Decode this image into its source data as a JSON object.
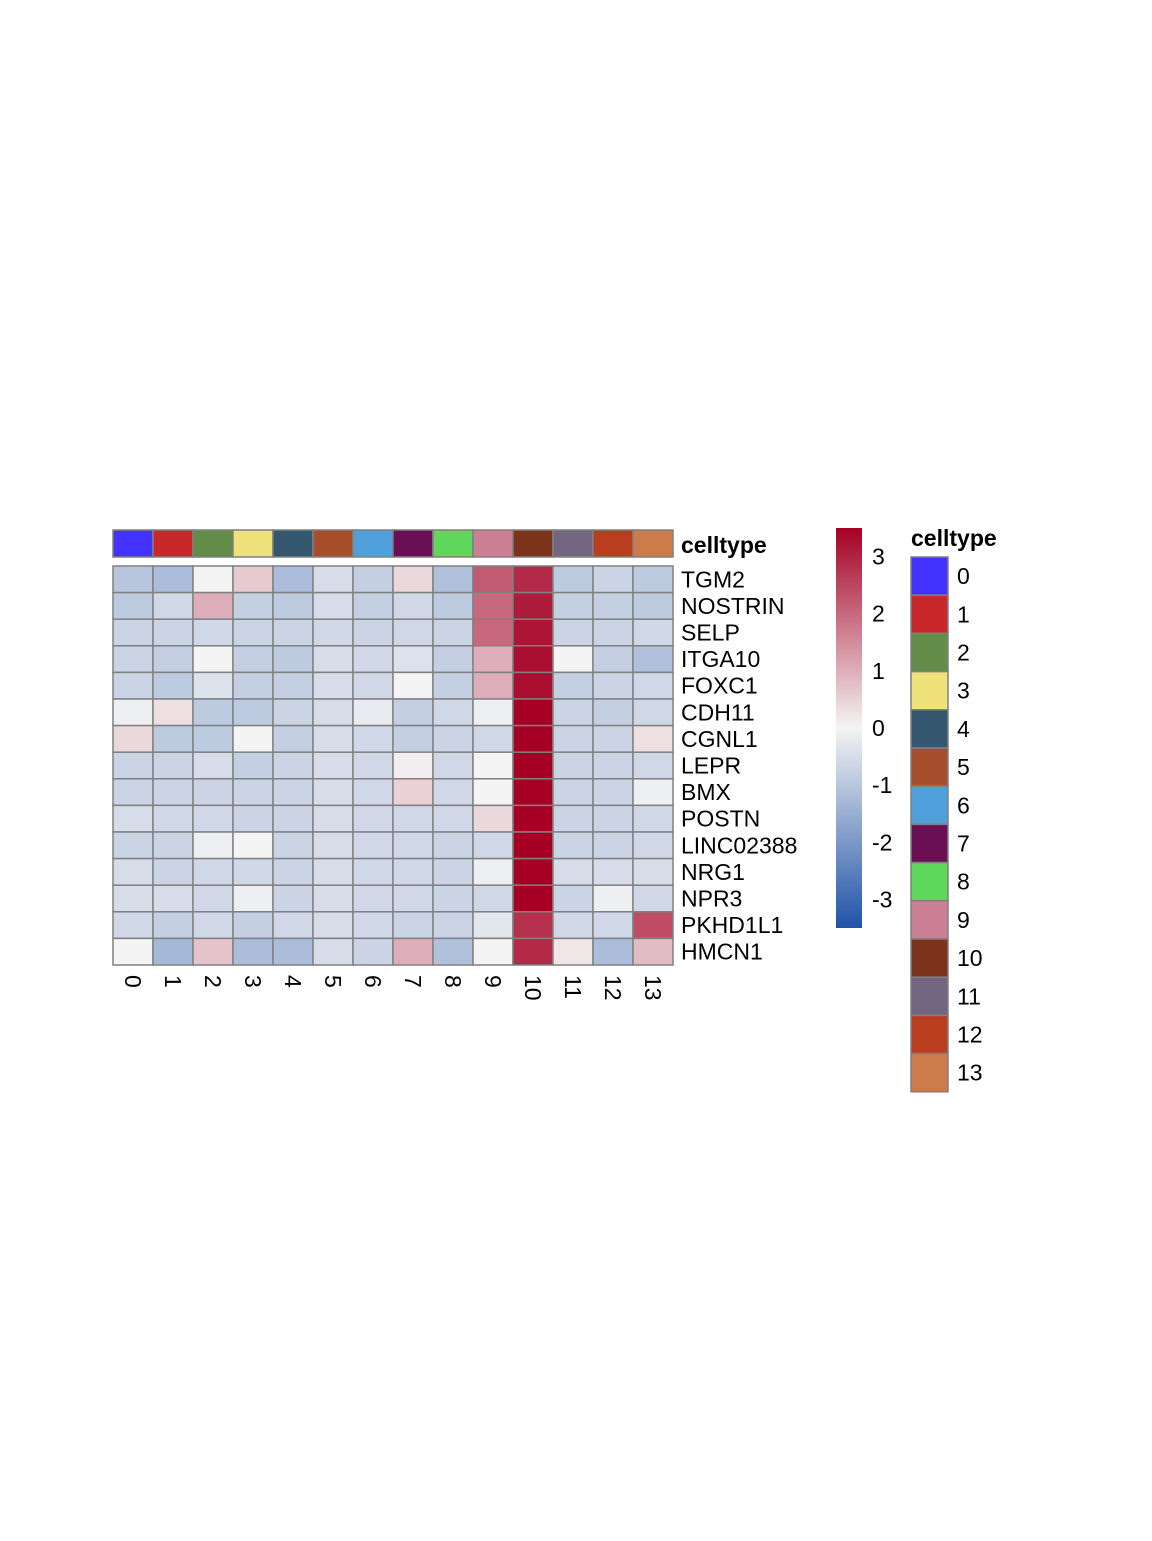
{
  "chart_data": {
    "type": "heatmap",
    "columns": [
      "0",
      "1",
      "2",
      "3",
      "4",
      "5",
      "6",
      "7",
      "8",
      "9",
      "10",
      "11",
      "12",
      "13"
    ],
    "rows": [
      "TGM2",
      "NOSTRIN",
      "SELP",
      "ITGA10",
      "FOXC1",
      "CDH11",
      "CGNL1",
      "LEPR",
      "BMX",
      "POSTN",
      "LINC02388",
      "NRG1",
      "NPR3",
      "PKHD1L1",
      "HMCN1"
    ],
    "values": [
      [
        -1.0,
        -1.2,
        0.0,
        0.6,
        -1.2,
        -0.5,
        -0.8,
        0.4,
        -1.1,
        2.2,
        2.9,
        -0.9,
        -0.7,
        -0.9
      ],
      [
        -0.9,
        -0.6,
        1.0,
        -0.8,
        -0.9,
        -0.5,
        -0.8,
        -0.6,
        -0.9,
        2.0,
        3.1,
        -0.8,
        -0.8,
        -0.9
      ],
      [
        -0.7,
        -0.7,
        -0.6,
        -0.7,
        -0.7,
        -0.6,
        -0.7,
        -0.6,
        -0.7,
        2.0,
        3.2,
        -0.7,
        -0.7,
        -0.6
      ],
      [
        -0.7,
        -0.8,
        0.0,
        -0.8,
        -0.9,
        -0.5,
        -0.6,
        -0.4,
        -0.8,
        1.0,
        3.3,
        0.0,
        -0.8,
        -1.1
      ],
      [
        -0.7,
        -0.9,
        -0.4,
        -0.8,
        -0.8,
        -0.5,
        -0.6,
        0.0,
        -0.8,
        1.0,
        3.3,
        -0.8,
        -0.7,
        -0.6
      ],
      [
        -0.1,
        0.3,
        -0.9,
        -0.9,
        -0.7,
        -0.5,
        -0.2,
        -0.8,
        -0.6,
        -0.1,
        3.5,
        -0.7,
        -0.8,
        -0.6
      ],
      [
        0.4,
        -0.9,
        -0.9,
        0.0,
        -0.8,
        -0.5,
        -0.6,
        -0.8,
        -0.7,
        -0.6,
        3.5,
        -0.7,
        -0.7,
        0.3
      ],
      [
        -0.7,
        -0.7,
        -0.5,
        -0.8,
        -0.7,
        -0.5,
        -0.6,
        0.1,
        -0.6,
        0.0,
        3.5,
        -0.7,
        -0.7,
        -0.6
      ],
      [
        -0.7,
        -0.7,
        -0.7,
        -0.7,
        -0.7,
        -0.5,
        -0.6,
        0.5,
        -0.6,
        0.0,
        3.5,
        -0.7,
        -0.7,
        -0.1
      ],
      [
        -0.5,
        -0.6,
        -0.6,
        -0.7,
        -0.7,
        -0.5,
        -0.6,
        -0.6,
        -0.6,
        0.4,
        3.5,
        -0.7,
        -0.7,
        -0.6
      ],
      [
        -0.7,
        -0.7,
        -0.1,
        0.0,
        -0.7,
        -0.5,
        -0.6,
        -0.6,
        -0.7,
        -0.6,
        3.5,
        -0.7,
        -0.7,
        -0.6
      ],
      [
        -0.5,
        -0.7,
        -0.6,
        -0.6,
        -0.7,
        -0.5,
        -0.6,
        -0.6,
        -0.7,
        -0.1,
        3.5,
        -0.5,
        -0.5,
        -0.5
      ],
      [
        -0.5,
        -0.5,
        -0.6,
        -0.1,
        -0.7,
        -0.5,
        -0.6,
        -0.6,
        -0.7,
        -0.6,
        3.5,
        -0.7,
        -0.1,
        -0.6
      ],
      [
        -0.6,
        -0.8,
        -0.6,
        -0.8,
        -0.6,
        -0.5,
        -0.6,
        -0.7,
        -0.7,
        -0.3,
        2.8,
        -0.6,
        -0.6,
        2.4
      ],
      [
        0.0,
        -1.3,
        0.7,
        -1.2,
        -1.2,
        -0.5,
        -0.7,
        1.0,
        -1.1,
        0.0,
        2.9,
        0.2,
        -1.2,
        0.8
      ]
    ],
    "annotation_title": "celltype",
    "celltype_colors": {
      "0": "#4433ff",
      "1": "#c9282b",
      "2": "#628c48",
      "3": "#efe27a",
      "4": "#35566f",
      "5": "#a74e2d",
      "6": "#4f9fda",
      "7": "#6a0f54",
      "8": "#5ed75a",
      "9": "#cc8095",
      "10": "#7c331b",
      "11": "#726680",
      "12": "#bb3d1f",
      "13": "#cc7c4a"
    },
    "colorbar": {
      "ticks": [
        "3",
        "2",
        "1",
        "0",
        "-1",
        "-2",
        "-3"
      ],
      "range": [
        -3.5,
        3.5
      ],
      "low_color": "#2053a7",
      "mid_color": "#f4f4f4",
      "high_color": "#a50024"
    },
    "legend_title": "celltype",
    "legend_labels": [
      "0",
      "1",
      "2",
      "3",
      "4",
      "5",
      "6",
      "7",
      "8",
      "9",
      "10",
      "11",
      "12",
      "13"
    ]
  }
}
